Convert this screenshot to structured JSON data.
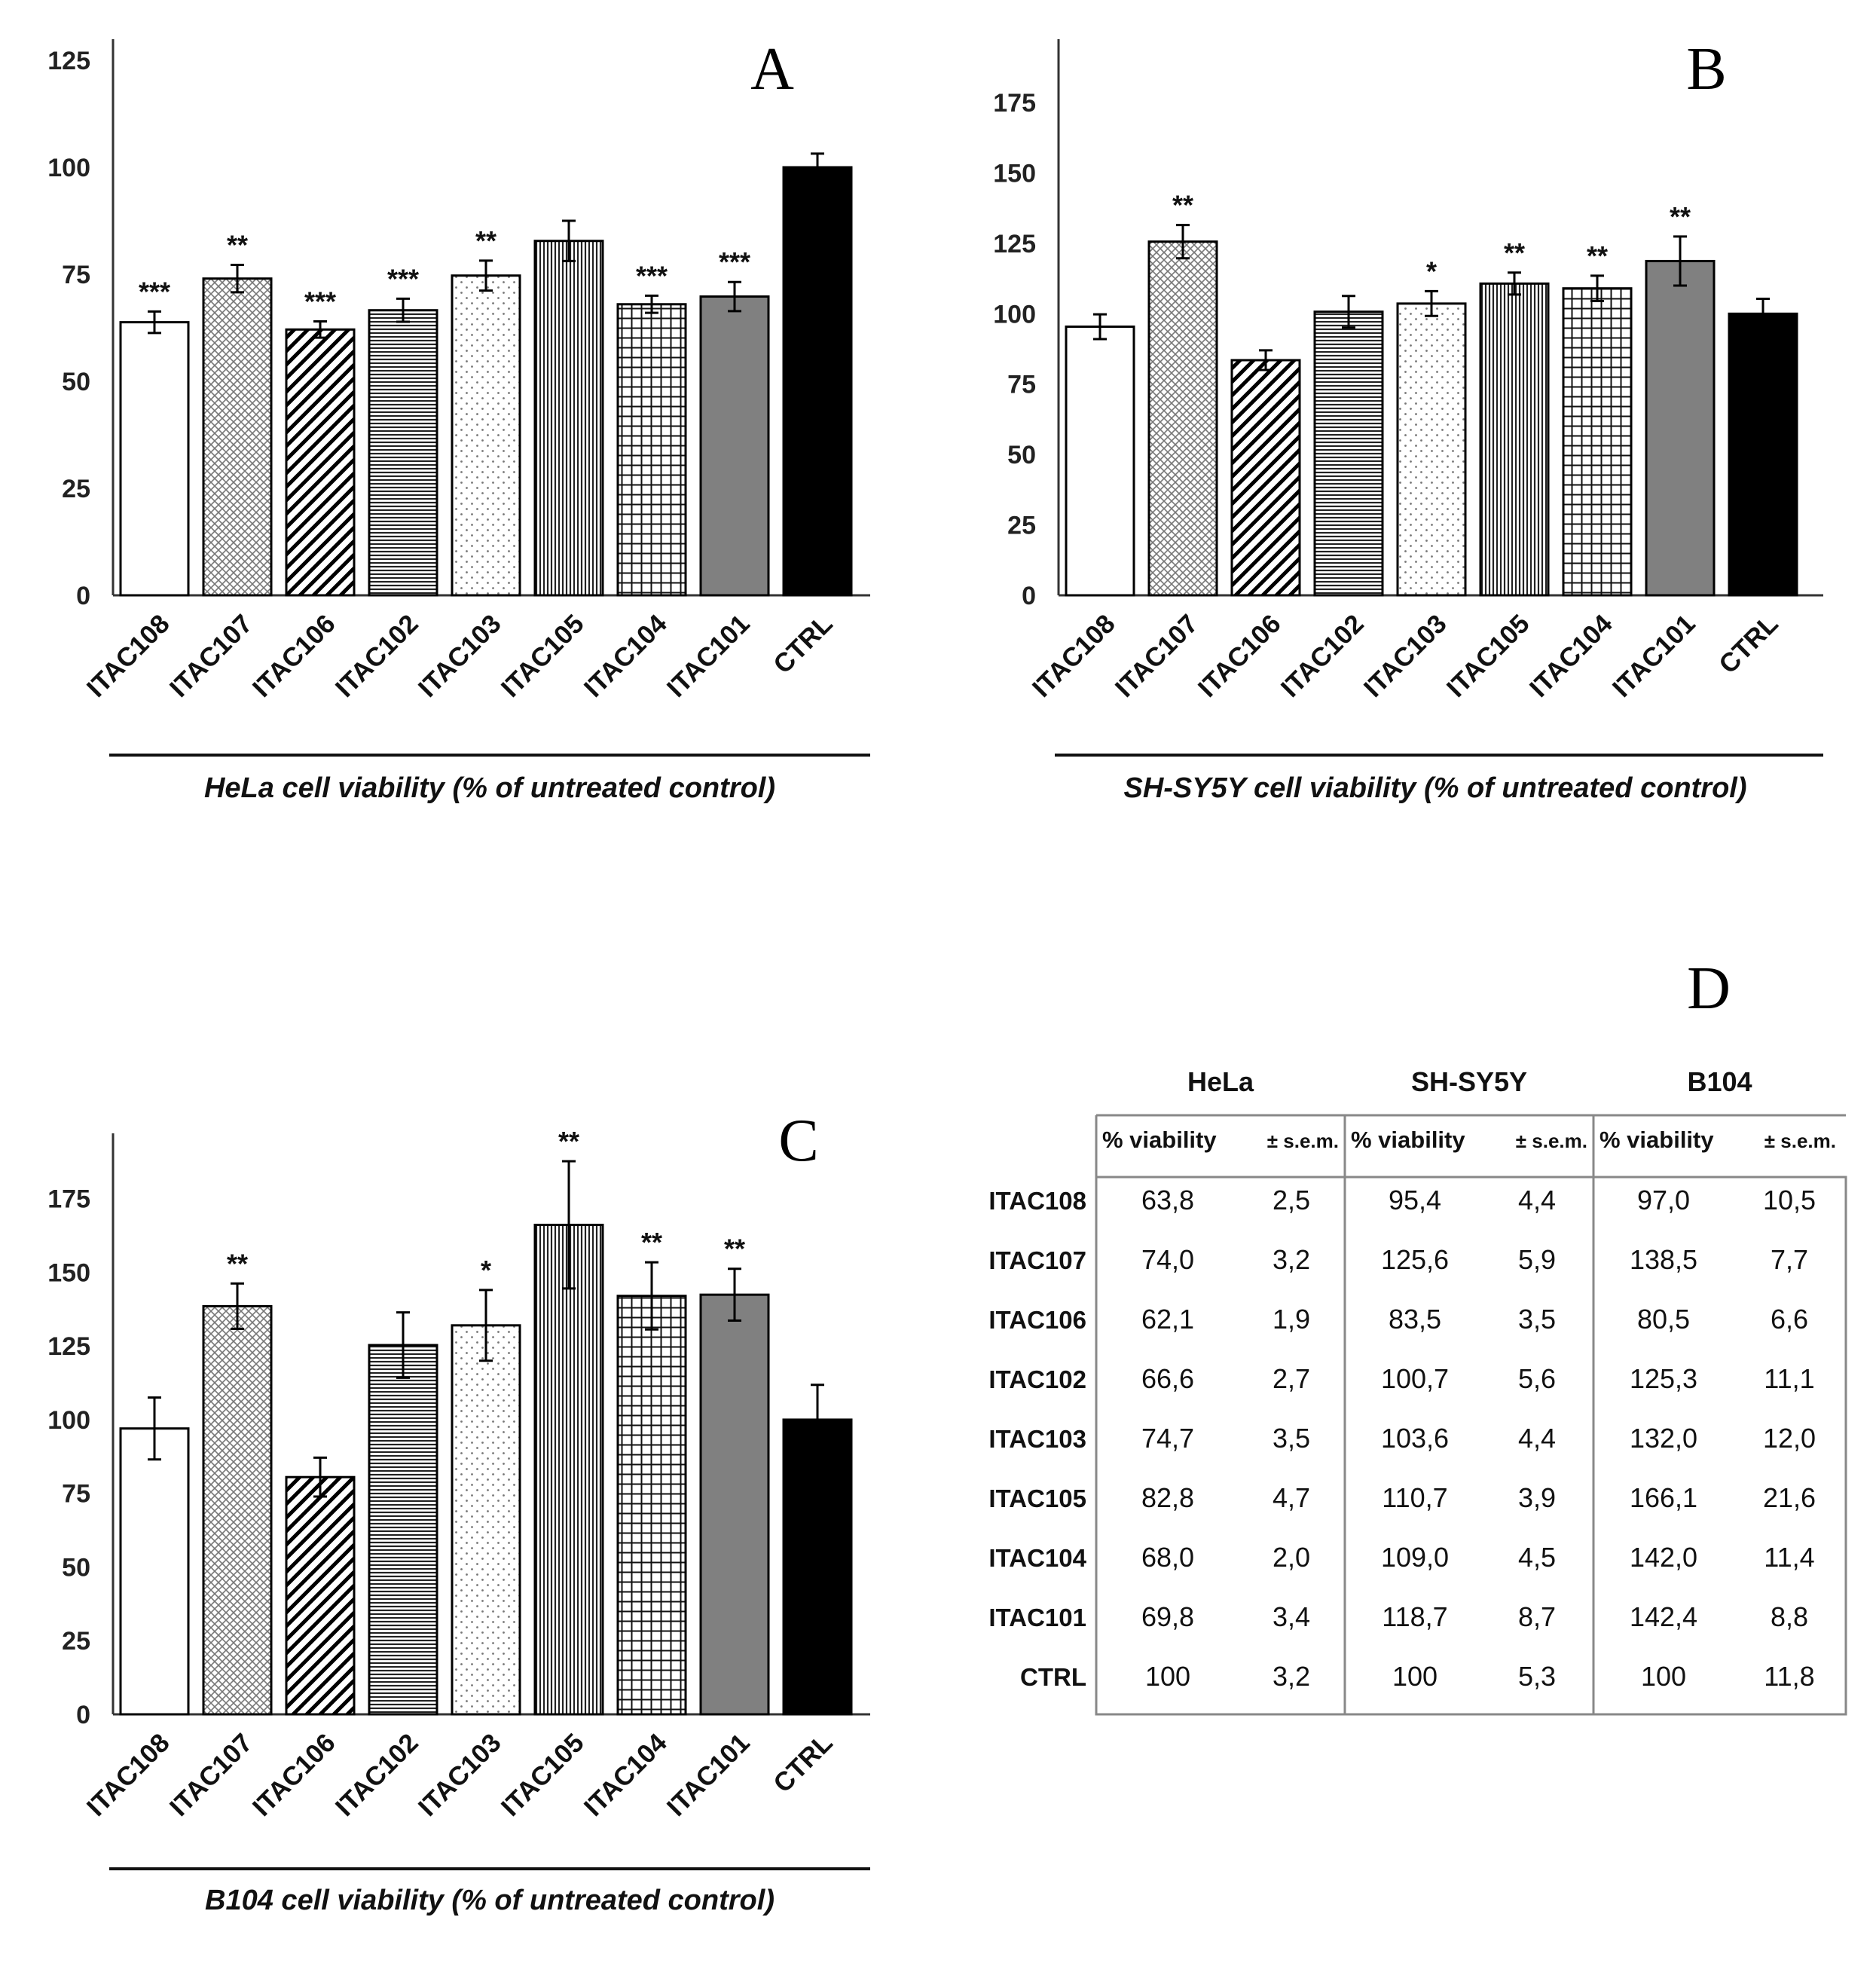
{
  "chart_data": [
    {
      "panel": "A",
      "type": "bar",
      "xlabel": "HeLa cell viability (% of untreated control)",
      "categories": [
        "ITAC108",
        "ITAC107",
        "ITAC106",
        "ITAC102",
        "ITAC103",
        "ITAC105",
        "ITAC104",
        "ITAC101",
        "CTRL"
      ],
      "values": [
        63.8,
        74.0,
        62.1,
        66.6,
        74.7,
        82.8,
        68.0,
        69.8,
        100
      ],
      "errors": [
        2.5,
        3.2,
        1.9,
        2.7,
        3.5,
        4.7,
        2.0,
        3.4,
        3.2
      ],
      "significance": [
        "***",
        "**",
        "***",
        "***",
        "**",
        "",
        "***",
        "***",
        ""
      ],
      "patterns": [
        "white",
        "crosshatch",
        "diagonal",
        "horizontal",
        "dots",
        "vertical",
        "grid",
        "gray",
        "black"
      ],
      "ylim": [
        0,
        125
      ],
      "yticks": [
        0,
        25,
        50,
        75,
        100,
        125
      ]
    },
    {
      "panel": "B",
      "type": "bar",
      "xlabel": "SH-SY5Y cell viability (% of untreated control)",
      "categories": [
        "ITAC108",
        "ITAC107",
        "ITAC106",
        "ITAC102",
        "ITAC103",
        "ITAC105",
        "ITAC104",
        "ITAC101",
        "CTRL"
      ],
      "values": [
        95.4,
        125.6,
        83.5,
        100.7,
        103.6,
        110.7,
        109.0,
        118.7,
        100
      ],
      "errors": [
        4.4,
        5.9,
        3.5,
        5.6,
        4.4,
        3.9,
        4.5,
        8.7,
        5.3
      ],
      "significance": [
        "",
        "**",
        "",
        "",
        "*",
        "**",
        "**",
        "**",
        ""
      ],
      "patterns": [
        "white",
        "crosshatch",
        "diagonal",
        "horizontal",
        "dots",
        "vertical",
        "grid",
        "gray",
        "black"
      ],
      "ylim": [
        0,
        190
      ],
      "yticks": [
        0,
        25,
        50,
        75,
        100,
        125,
        150,
        175
      ]
    },
    {
      "panel": "C",
      "type": "bar",
      "xlabel": "B104 cell viability (% of untreated control)",
      "categories": [
        "ITAC108",
        "ITAC107",
        "ITAC106",
        "ITAC102",
        "ITAC103",
        "ITAC105",
        "ITAC104",
        "ITAC101",
        "CTRL"
      ],
      "values": [
        97.0,
        138.5,
        80.5,
        125.3,
        132.0,
        166.1,
        142.0,
        142.4,
        100
      ],
      "errors": [
        10.5,
        7.7,
        6.6,
        11.1,
        12.0,
        21.6,
        11.4,
        8.8,
        11.8
      ],
      "significance": [
        "",
        "**",
        "",
        "",
        "*",
        "**",
        "**",
        "**",
        ""
      ],
      "patterns": [
        "white",
        "crosshatch",
        "diagonal",
        "horizontal",
        "dots",
        "vertical",
        "grid",
        "gray",
        "black"
      ],
      "ylim": [
        0,
        190
      ],
      "yticks": [
        0,
        25,
        50,
        75,
        100,
        125,
        150,
        175
      ]
    },
    {
      "panel": "D",
      "type": "table",
      "groups": [
        "HeLa",
        "SH-SY5Y",
        "B104"
      ],
      "subheaders": [
        "% viability",
        "± s.e.m."
      ],
      "rows": [
        {
          "label": "ITAC108",
          "cells": [
            "63,8",
            "2,5",
            "95,4",
            "4,4",
            "97,0",
            "10,5"
          ]
        },
        {
          "label": "ITAC107",
          "cells": [
            "74,0",
            "3,2",
            "125,6",
            "5,9",
            "138,5",
            "7,7"
          ]
        },
        {
          "label": "ITAC106",
          "cells": [
            "62,1",
            "1,9",
            "83,5",
            "3,5",
            "80,5",
            "6,6"
          ]
        },
        {
          "label": "ITAC102",
          "cells": [
            "66,6",
            "2,7",
            "100,7",
            "5,6",
            "125,3",
            "11,1"
          ]
        },
        {
          "label": "ITAC103",
          "cells": [
            "74,7",
            "3,5",
            "103,6",
            "4,4",
            "132,0",
            "12,0"
          ]
        },
        {
          "label": "ITAC105",
          "cells": [
            "82,8",
            "4,7",
            "110,7",
            "3,9",
            "166,1",
            "21,6"
          ]
        },
        {
          "label": "ITAC104",
          "cells": [
            "68,0",
            "2,0",
            "109,0",
            "4,5",
            "142,0",
            "11,4"
          ]
        },
        {
          "label": "ITAC101",
          "cells": [
            "69,8",
            "3,4",
            "118,7",
            "8,7",
            "142,4",
            "8,8"
          ]
        },
        {
          "label": "CTRL",
          "cells": [
            "100",
            "3,2",
            "100",
            "5,3",
            "100",
            "11,8"
          ]
        }
      ]
    }
  ]
}
